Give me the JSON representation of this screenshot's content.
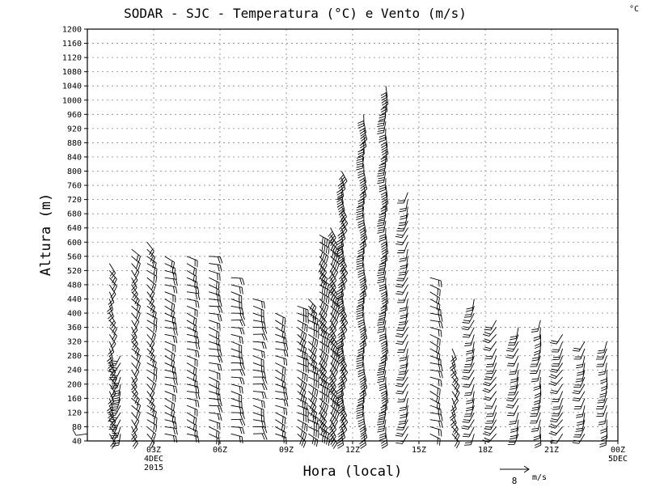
{
  "chart_data": {
    "type": "wind-barb",
    "title": "SODAR - SJC - Temperatura (°C) e Vento (m/s)",
    "corner_unit": "°C",
    "xlabel": "Hora (local)",
    "ylabel": "Altura (m)",
    "ylim": [
      40,
      1200
    ],
    "xlim_hours": [
      0,
      24
    ],
    "grid": true,
    "y_ticks": [
      40,
      80,
      120,
      160,
      200,
      240,
      280,
      320,
      360,
      400,
      440,
      480,
      520,
      560,
      600,
      640,
      680,
      720,
      760,
      800,
      840,
      880,
      920,
      960,
      1000,
      1040,
      1080,
      1120,
      1160,
      1200
    ],
    "x_ticks": [
      {
        "hour": 3,
        "label": "03Z",
        "sub1": "4DEC",
        "sub2": "2015"
      },
      {
        "hour": 6,
        "label": "06Z",
        "sub1": "",
        "sub2": ""
      },
      {
        "hour": 9,
        "label": "09Z",
        "sub1": "",
        "sub2": ""
      },
      {
        "hour": 12,
        "label": "12Z",
        "sub1": "",
        "sub2": ""
      },
      {
        "hour": 15,
        "label": "15Z",
        "sub1": "",
        "sub2": ""
      },
      {
        "hour": 18,
        "label": "18Z",
        "sub1": "",
        "sub2": ""
      },
      {
        "hour": 21,
        "label": "21Z",
        "sub1": "",
        "sub2": ""
      },
      {
        "hour": 24,
        "label": "00Z",
        "sub1": "5DEC",
        "sub2": ""
      }
    ],
    "reference_vector": {
      "speed": 8,
      "label_value": "8",
      "label_unit": "m/s"
    },
    "profiles": [
      {
        "hour": 0.0,
        "top": 60,
        "dir": 250,
        "speed": 2
      },
      {
        "hour": 1.0,
        "top": 540,
        "dir": 150,
        "speed": 3
      },
      {
        "hour": 1.5,
        "top": 280,
        "dir": 200,
        "speed": 6
      },
      {
        "hour": 2.0,
        "top": 580,
        "dir": 140,
        "speed": 3
      },
      {
        "hour": 2.7,
        "top": 610,
        "dir": 130,
        "speed": 4
      },
      {
        "hour": 3.5,
        "top": 560,
        "dir": 110,
        "speed": 4
      },
      {
        "hour": 4.5,
        "top": 560,
        "dir": 110,
        "speed": 4
      },
      {
        "hour": 5.5,
        "top": 560,
        "dir": 105,
        "speed": 4
      },
      {
        "hour": 6.5,
        "top": 510,
        "dir": 100,
        "speed": 3
      },
      {
        "hour": 7.5,
        "top": 440,
        "dir": 100,
        "speed": 3
      },
      {
        "hour": 8.5,
        "top": 400,
        "dir": 110,
        "speed": 4
      },
      {
        "hour": 9.5,
        "top": 420,
        "dir": 120,
        "speed": 5
      },
      {
        "hour": 10.0,
        "top": 440,
        "dir": 125,
        "speed": 6
      },
      {
        "hour": 10.5,
        "top": 620,
        "dir": 130,
        "speed": 7
      },
      {
        "hour": 11.0,
        "top": 640,
        "dir": 140,
        "speed": 8
      },
      {
        "hour": 11.5,
        "top": 800,
        "dir": 160,
        "speed": 7
      },
      {
        "hour": 12.5,
        "top": 960,
        "dir": 175,
        "speed": 6
      },
      {
        "hour": 13.5,
        "top": 1040,
        "dir": 180,
        "speed": 5
      },
      {
        "hour": 14.5,
        "top": 740,
        "dir": 200,
        "speed": 3
      },
      {
        "hour": 15.5,
        "top": 500,
        "dir": 110,
        "speed": 3
      },
      {
        "hour": 16.5,
        "top": 300,
        "dir": 150,
        "speed": 3
      },
      {
        "hour": 17.5,
        "top": 450,
        "dir": 200,
        "speed": 3
      },
      {
        "hour": 18.5,
        "top": 380,
        "dir": 210,
        "speed": 3
      },
      {
        "hour": 19.5,
        "top": 360,
        "dir": 200,
        "speed": 3
      },
      {
        "hour": 20.5,
        "top": 390,
        "dir": 190,
        "speed": 3
      },
      {
        "hour": 21.5,
        "top": 340,
        "dir": 210,
        "speed": 3
      },
      {
        "hour": 22.5,
        "top": 330,
        "dir": 200,
        "speed": 3
      },
      {
        "hour": 23.5,
        "top": 330,
        "dir": 190,
        "speed": 3
      }
    ]
  }
}
